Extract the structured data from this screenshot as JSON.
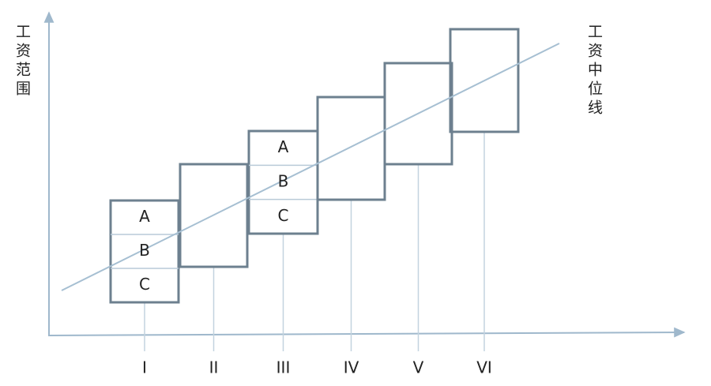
{
  "y_axis_label": "工资范围",
  "median_line_label": "工资中位线",
  "grades": [
    {
      "label": "I",
      "levels": [
        "A",
        "B",
        "C"
      ]
    },
    {
      "label": "II"
    },
    {
      "label": "III",
      "levels": [
        "A",
        "B",
        "C"
      ]
    },
    {
      "label": "IV"
    },
    {
      "label": "V"
    },
    {
      "label": "VI"
    }
  ]
}
